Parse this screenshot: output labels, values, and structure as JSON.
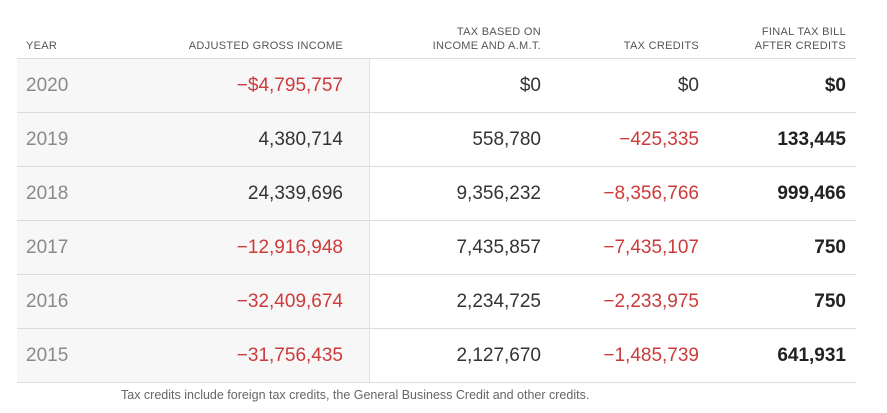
{
  "headers": {
    "year": "YEAR",
    "agi": "ADJUSTED GROSS INCOME",
    "tax_line1": "TAX BASED ON",
    "tax_line2": "INCOME AND A.M.T.",
    "credits": "TAX CREDITS",
    "final_line1": "FINAL TAX BILL",
    "final_line2": "AFTER CREDITS"
  },
  "rows": [
    {
      "year": "2020",
      "agi": "−$4,795,757",
      "tax": "$0",
      "credits": "$0",
      "final": "$0"
    },
    {
      "year": "2019",
      "agi": "4,380,714",
      "tax": "558,780",
      "credits": "−425,335",
      "final": "133,445"
    },
    {
      "year": "2018",
      "agi": "24,339,696",
      "tax": "9,356,232",
      "credits": "−8,356,766",
      "final": "999,466"
    },
    {
      "year": "2017",
      "agi": "−12,916,948",
      "tax": "7,435,857",
      "credits": "−7,435,107",
      "final": "750"
    },
    {
      "year": "2016",
      "agi": "−32,409,674",
      "tax": "2,234,725",
      "credits": "−2,233,975",
      "final": "750"
    },
    {
      "year": "2015",
      "agi": "−31,756,435",
      "tax": "2,127,670",
      "credits": "−1,485,739",
      "final": "641,931"
    }
  ],
  "footnote": "Tax credits include foreign tax credits, the General Business Credit and other credits.",
  "colors": {
    "negative": "#cc3a3a",
    "text": "#333333",
    "year_text": "#8a8a8a",
    "shaded_column": "#f7f7f7"
  }
}
